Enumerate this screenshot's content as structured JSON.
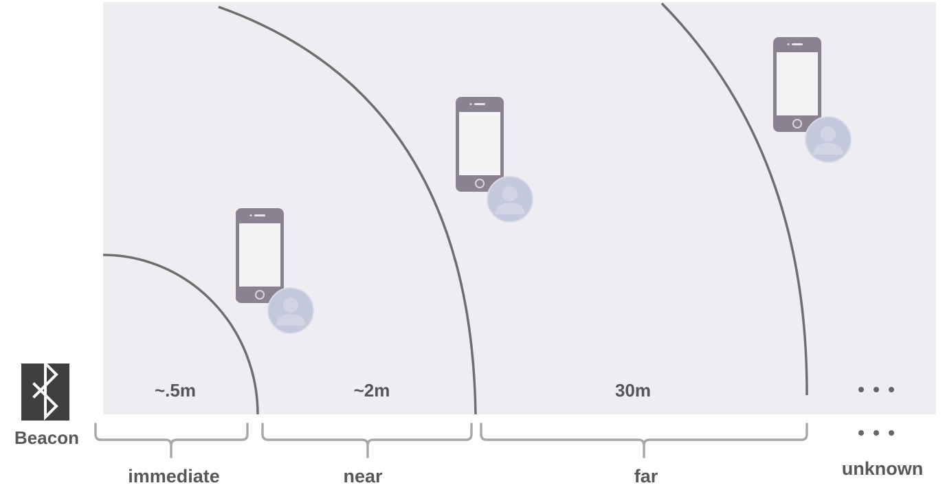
{
  "diagram": {
    "beacon": {
      "label": "Beacon",
      "icon": "bluetooth-icon"
    },
    "distances": [
      "~.5m",
      "~2m",
      "30m"
    ],
    "zones": [
      "immediate",
      "near",
      "far",
      "unknown"
    ],
    "colors": {
      "panel": "#eeedf1",
      "ring": "#6e6e6e",
      "phone": "#8a8290",
      "avatar": "#c3c8dc",
      "text": "#58585c",
      "beacon_box": "#3f3f3f"
    }
  }
}
